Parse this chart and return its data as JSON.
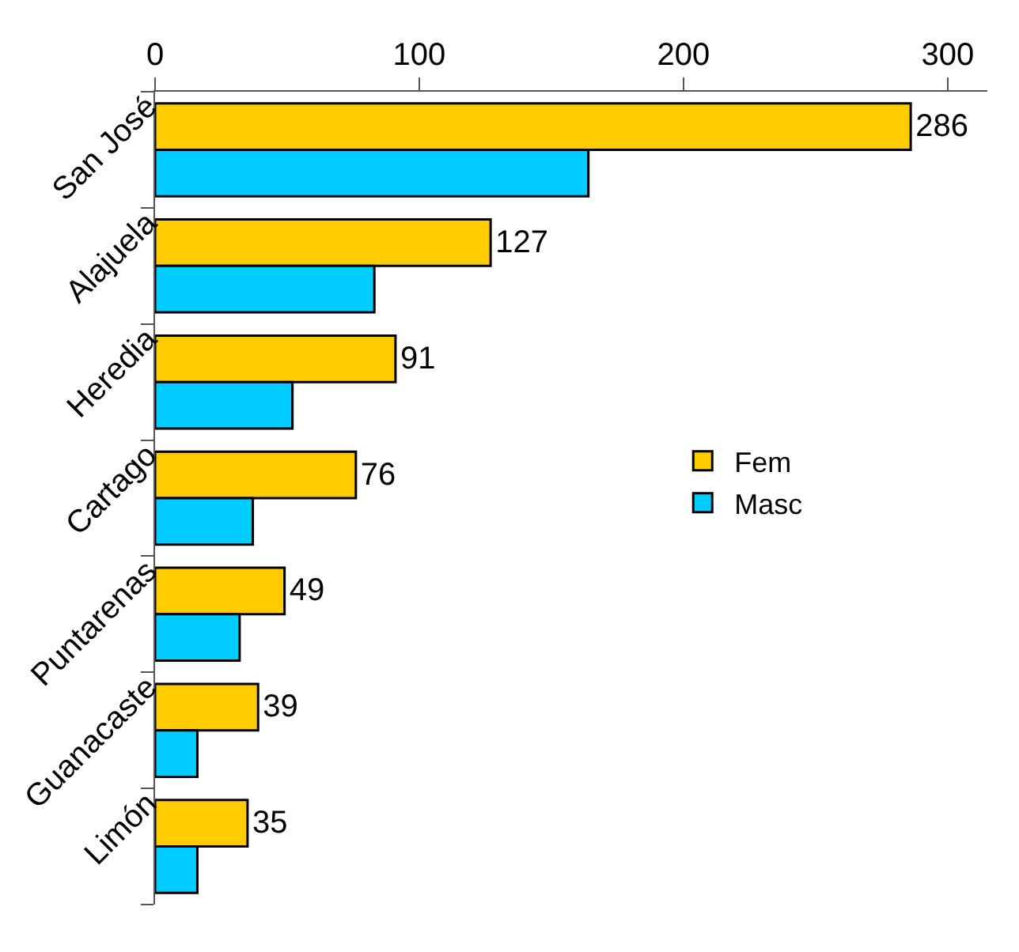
{
  "chart_data": {
    "type": "bar",
    "orientation": "horizontal",
    "categories": [
      "San José",
      "Alajuela",
      "Heredia",
      "Cartago",
      "Puntarenas",
      "Guanacaste",
      "Limón"
    ],
    "series": [
      {
        "name": "Fem",
        "color": "#ffcc00",
        "values": [
          286,
          127,
          91,
          76,
          49,
          39,
          35
        ],
        "value_labels": [
          "286",
          "127",
          "91",
          "76",
          "49",
          "39",
          "35"
        ]
      },
      {
        "name": "Masc",
        "color": "#00ccff",
        "values": [
          164,
          83,
          52,
          37,
          32,
          16,
          16
        ]
      }
    ],
    "xlim": [
      0,
      315
    ],
    "xticks": [
      0,
      100,
      200,
      300
    ],
    "legend": "right"
  }
}
